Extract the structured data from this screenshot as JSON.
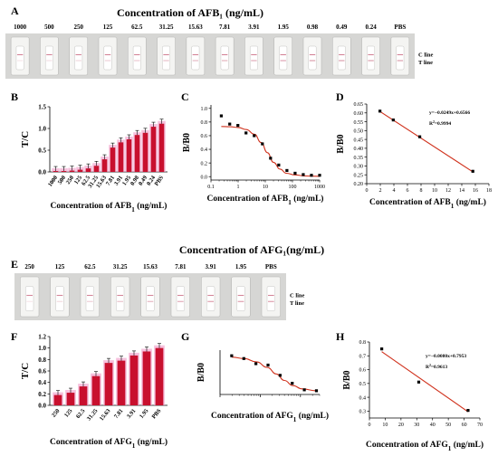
{
  "section_labels": [
    "A",
    "B",
    "C",
    "D",
    "E",
    "F",
    "G",
    "H"
  ],
  "titles": {
    "afb1": "Concentration of AFB₁ (ng/mL)",
    "afg1": "Concentration of AFG₁(ng/mL)"
  },
  "strips": {
    "afb1_concentrations": [
      "1000",
      "500",
      "250",
      "125",
      "62.5",
      "31.25",
      "15.63",
      "7.81",
      "3.91",
      "1.95",
      "0.98",
      "0.49",
      "0.24",
      "PBS"
    ],
    "afg1_concentrations": [
      "250",
      "125",
      "62.5",
      "31.25",
      "15.63",
      "7.81",
      "3.91",
      "1.95",
      "PBS"
    ],
    "c_line": "C line",
    "t_line": "T line"
  },
  "colors": {
    "bar": "#c8102e",
    "bar_shadow": "#f2a6cf",
    "fit": "#d0321d",
    "point": "#000000"
  },
  "chart_data": [
    {
      "id": "B",
      "type": "bar",
      "ylabel": "T/C",
      "xlabel": "Concentration of AFB₁ (ng/mL)",
      "ylim": [
        0,
        1.5
      ],
      "yticks": [
        "0.0",
        "0.5",
        "1.0",
        "1.5"
      ],
      "categories": [
        "1000",
        "500",
        "250",
        "125",
        "62.5",
        "31.25",
        "15.63",
        "7.81",
        "3.91",
        "1.95",
        "0.98",
        "0.49",
        "0.24",
        "PBS"
      ],
      "values": [
        0.02,
        0.02,
        0.03,
        0.05,
        0.08,
        0.14,
        0.29,
        0.56,
        0.68,
        0.75,
        0.85,
        0.9,
        1.04,
        1.11
      ]
    },
    {
      "id": "C",
      "type": "scatter",
      "xscale": "log",
      "ylabel": "B/B0",
      "xlabel": "Concentration of AFB₁ (ng/mL)",
      "xlim": [
        0.1,
        1000
      ],
      "ylim": [
        -0.05,
        1.05
      ],
      "xticks": [
        "0.1",
        "1",
        "10",
        "100",
        "1000"
      ],
      "yticks": [
        "0.0",
        "0.2",
        "0.4",
        "0.6",
        "0.8",
        "1.0"
      ],
      "points": [
        [
          0.24,
          0.89
        ],
        [
          0.49,
          0.77
        ],
        [
          0.98,
          0.75
        ],
        [
          1.95,
          0.64
        ],
        [
          3.91,
          0.6
        ],
        [
          7.81,
          0.48
        ],
        [
          15.63,
          0.27
        ],
        [
          31.25,
          0.17
        ],
        [
          62.5,
          0.09
        ],
        [
          125,
          0.05
        ],
        [
          250,
          0.03
        ],
        [
          500,
          0.02
        ],
        [
          1000,
          0.02
        ]
      ],
      "fit": [
        [
          0.24,
          0.735
        ],
        [
          0.5,
          0.73
        ],
        [
          1,
          0.72
        ],
        [
          2,
          0.69
        ],
        [
          4,
          0.62
        ],
        [
          7,
          0.5
        ],
        [
          12,
          0.35
        ],
        [
          20,
          0.21
        ],
        [
          35,
          0.11
        ],
        [
          60,
          0.05
        ],
        [
          120,
          0.025
        ],
        [
          300,
          0.01
        ],
        [
          1000,
          0.005
        ]
      ]
    },
    {
      "id": "D",
      "type": "scatter",
      "ylabel": "B/B0",
      "xlabel": "Concentration of AFB₁ (ng/mL)",
      "xlim": [
        0,
        18
      ],
      "ylim": [
        0.2,
        0.65
      ],
      "xticks": [
        "0",
        "2",
        "4",
        "6",
        "8",
        "10",
        "12",
        "14",
        "16",
        "18"
      ],
      "yticks": [
        "0.20",
        "0.25",
        "0.30",
        "0.35",
        "0.40",
        "0.45",
        "0.50",
        "0.55",
        "0.60",
        "0.65"
      ],
      "points": [
        [
          1.95,
          0.61
        ],
        [
          3.91,
          0.56
        ],
        [
          7.81,
          0.465
        ],
        [
          15.63,
          0.27
        ]
      ],
      "fit": [
        [
          1.95,
          0.608
        ],
        [
          15.63,
          0.267
        ]
      ],
      "equation": "y=−0.0249x+0.6566",
      "r2": "R²=0.9994"
    },
    {
      "id": "F",
      "type": "bar",
      "ylabel": "T/C",
      "xlabel": "Concentration of AFG₁ (ng/mL)",
      "ylim": [
        0,
        1.2
      ],
      "yticks": [
        "0.0",
        "0.2",
        "0.4",
        "0.6",
        "0.8",
        "1.0",
        "1.2"
      ],
      "categories": [
        "250",
        "125",
        "62.5",
        "31.25",
        "15.63",
        "7.81",
        "3.91",
        "1.95",
        "PBS"
      ],
      "values": [
        0.18,
        0.22,
        0.33,
        0.51,
        0.74,
        0.78,
        0.87,
        0.94,
        1.0
      ]
    },
    {
      "id": "G",
      "type": "scatter",
      "xscale": "log",
      "ylabel": "B/B0",
      "xlabel": "Concentration of AFG₁ (ng/mL)",
      "xlim": [
        1,
        300
      ],
      "ylim": [
        0.1,
        1.05
      ],
      "points": [
        [
          1.95,
          0.93
        ],
        [
          3.91,
          0.87
        ],
        [
          7.81,
          0.76
        ],
        [
          15.63,
          0.73
        ],
        [
          31.25,
          0.51
        ],
        [
          62.5,
          0.34
        ],
        [
          125,
          0.2
        ],
        [
          250,
          0.18
        ]
      ],
      "fit": [
        [
          1.95,
          0.9
        ],
        [
          4,
          0.87
        ],
        [
          8,
          0.8
        ],
        [
          15,
          0.68
        ],
        [
          25,
          0.54
        ],
        [
          40,
          0.4
        ],
        [
          65,
          0.29
        ],
        [
          110,
          0.22
        ],
        [
          250,
          0.18
        ]
      ]
    },
    {
      "id": "H",
      "type": "scatter",
      "ylabel": "B/B0",
      "xlabel": "Concentration of AFG₁ (ng/mL)",
      "xlim": [
        0,
        70
      ],
      "ylim": [
        0.25,
        0.8
      ],
      "xticks": [
        "0",
        "10",
        "20",
        "30",
        "40",
        "50",
        "60",
        "70"
      ],
      "yticks": [
        "0.3",
        "0.4",
        "0.5",
        "0.6",
        "0.7",
        "0.8"
      ],
      "points": [
        [
          7.81,
          0.75
        ],
        [
          31.25,
          0.51
        ],
        [
          62.5,
          0.305
        ]
      ],
      "fit": [
        [
          7.81,
          0.73
        ],
        [
          62.5,
          0.295
        ]
      ],
      "equation": "y=−0.0080x+0.7953",
      "r2": "R²=0.9613"
    }
  ]
}
